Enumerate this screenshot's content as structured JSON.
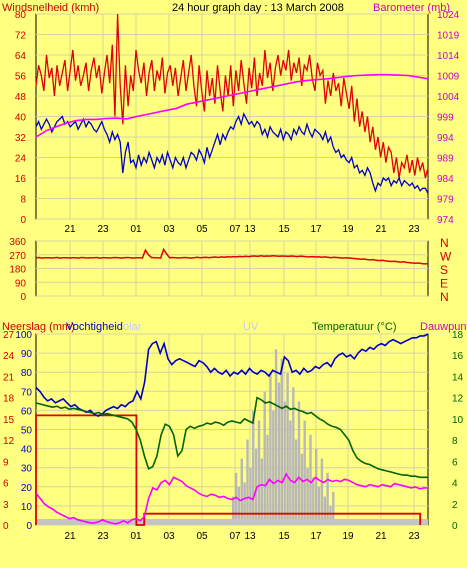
{
  "colors": {
    "background": "#ffff80",
    "plot_background": "#ffff80",
    "grid": "#d4d4a0",
    "frame": "#000000",
    "axis_text": "#000000",
    "title_red": "#d00000",
    "title_magenta": "#cc00cc",
    "blue_label": "#0000c8",
    "green_label": "#006400",
    "ghost_label": "#c8c8ff"
  },
  "header": {
    "left_label": "Windsnelheid (kmh)",
    "title": "24 hour graph day : 13 March 2008",
    "right_label": "Barometer (mb)"
  },
  "bottom_header": {
    "rain_label": "Neerslag (mm)",
    "humidity_label": "Vochtigheid",
    "solar_label": "olar",
    "uv_label": "UV",
    "temp_label": "Temperatuur (°C)",
    "dew_label": "Dauwpunt"
  },
  "chart_data": [
    {
      "type": "line",
      "id": "wind_pressure",
      "x_ticks": [
        "21",
        "23",
        "01",
        "03",
        "05",
        "07",
        "13",
        "15",
        "17",
        "19",
        "21",
        "23"
      ],
      "left_axis": {
        "ticks": [
          0,
          8,
          16,
          24,
          32,
          40,
          48,
          56,
          64,
          72,
          80
        ],
        "ylim": [
          0,
          80
        ]
      },
      "right_axis": {
        "ticks": [
          974,
          979,
          984,
          989,
          994,
          999,
          1004,
          1009,
          1014,
          1019,
          1024
        ],
        "ylim": [
          974,
          1024
        ]
      },
      "series": [
        {
          "name": "Windsnelheid (kmh)",
          "color": "#e00000",
          "axis": "left",
          "values": [
            52,
            60,
            56,
            50,
            64,
            55,
            59,
            48,
            60,
            52,
            57,
            62,
            50,
            58,
            66,
            54,
            60,
            52,
            56,
            61,
            50,
            58,
            63,
            55,
            60,
            49,
            57,
            64,
            53,
            68,
            40,
            80,
            52,
            37,
            60,
            44,
            56,
            50,
            66,
            58,
            53,
            61,
            48,
            57,
            62,
            50,
            58,
            54,
            63,
            49,
            57,
            60,
            52,
            59,
            48,
            55,
            62,
            50,
            57,
            64,
            52,
            44,
            60,
            50,
            42,
            58,
            48,
            55,
            45,
            60,
            50,
            42,
            56,
            48,
            60,
            44,
            58,
            50,
            62,
            53,
            45,
            59,
            51,
            63,
            48,
            57,
            52,
            66,
            55,
            61,
            50,
            59,
            64,
            56,
            62,
            58,
            66,
            54,
            61,
            57,
            63,
            52,
            60,
            58,
            64,
            55,
            50,
            61,
            56,
            58,
            45,
            54,
            48,
            57,
            50,
            53,
            44,
            55,
            49,
            43,
            52,
            38,
            47,
            36,
            42,
            34,
            40,
            30,
            36,
            27,
            32,
            24,
            30,
            22,
            28,
            26,
            18,
            24,
            16,
            22,
            20,
            25,
            18,
            23,
            17,
            24,
            19,
            22,
            16,
            20
          ]
        },
        {
          "name": "Windsnelheid gemiddelde",
          "color": "#0000c8",
          "axis": "left",
          "values": [
            36,
            38,
            35,
            37,
            39,
            37,
            34,
            36,
            38,
            39,
            40,
            37,
            38,
            36,
            37,
            38,
            35,
            37,
            39,
            36,
            38,
            37,
            35,
            34,
            36,
            38,
            35,
            33,
            30,
            34,
            31,
            33,
            30,
            18,
            26,
            30,
            22,
            23,
            20,
            25,
            21,
            24,
            22,
            26,
            23,
            20,
            24,
            22,
            25,
            21,
            26,
            23,
            20,
            24,
            22,
            21,
            24,
            20,
            23,
            26,
            25,
            23,
            27,
            25,
            22,
            28,
            24,
            27,
            30,
            33,
            29,
            33,
            31,
            34,
            36,
            35,
            38,
            40,
            37,
            41,
            39,
            37,
            38,
            36,
            38,
            37,
            33,
            35,
            32,
            36,
            34,
            33,
            32,
            35,
            31,
            34,
            33,
            31,
            35,
            33,
            36,
            34,
            33,
            37,
            34,
            32,
            35,
            34,
            33,
            31,
            34,
            30,
            32,
            28,
            26,
            27,
            24,
            25,
            23,
            22,
            24,
            20,
            21,
            18,
            19,
            17,
            20,
            18,
            14,
            11,
            14,
            13,
            16,
            15,
            16,
            13,
            15,
            14,
            16,
            13,
            15,
            14,
            13,
            14,
            12,
            13,
            11,
            12,
            12,
            10
          ]
        },
        {
          "name": "Barometer (mb)",
          "color": "#ff00ff",
          "axis": "right",
          "values": [
            994,
            995.5,
            996.5,
            997.4,
            998,
            998.3,
            998.3,
            998.5,
            998.6,
            998.4,
            999,
            999.5,
            1000,
            1000.5,
            1001,
            1002,
            1002.5,
            1003,
            1003.5,
            1004,
            1004.5,
            1005,
            1005.5,
            1006,
            1006.5,
            1007,
            1007.5,
            1007.8,
            1008,
            1008.2,
            1008.5,
            1008.8,
            1009,
            1009.1,
            1009.2,
            1009.2,
            1009.1,
            1009,
            1008.6,
            1008.2
          ]
        }
      ]
    },
    {
      "type": "line",
      "id": "wind_direction",
      "x_ticks": [],
      "left_axis": {
        "ticks": [
          0,
          90,
          180,
          270,
          360
        ],
        "ylim": [
          0,
          360
        ]
      },
      "right_axis": {
        "ticks": [
          "N",
          "W",
          "S",
          "E",
          "N"
        ]
      },
      "series": [
        {
          "name": "Windrichting",
          "color": "#e00000",
          "axis": "left",
          "values": [
            250,
            252,
            248,
            250,
            251,
            249,
            250,
            252,
            248,
            251,
            250,
            249,
            251,
            250,
            248,
            252,
            250,
            249,
            251,
            250,
            252,
            248,
            250,
            251,
            249,
            250,
            252,
            250,
            249,
            251,
            252,
            250,
            248,
            251,
            250,
            249,
            300,
            270,
            252,
            251,
            250,
            248,
            305,
            275,
            250,
            252,
            251,
            249,
            250,
            252,
            250,
            248,
            251,
            253,
            250,
            252,
            254,
            251,
            253,
            255,
            252,
            256,
            254,
            257,
            255,
            258,
            256,
            259,
            257,
            260,
            258,
            261,
            262,
            259,
            263,
            260,
            262,
            261,
            263,
            262,
            260,
            262,
            261,
            259,
            262,
            260,
            258,
            261,
            259,
            257,
            256,
            258,
            255,
            257,
            254,
            256,
            253,
            251,
            254,
            252,
            250,
            248,
            251,
            249,
            247,
            245,
            243,
            240,
            242,
            238,
            236,
            238,
            234,
            232,
            234,
            230,
            228,
            226,
            227,
            224,
            222,
            224,
            220,
            218,
            216,
            214,
            216,
            212,
            210,
            212
          ]
        }
      ]
    },
    {
      "type": "line",
      "id": "rain_humidity_temp",
      "x_ticks": [
        "21",
        "23",
        "01",
        "03",
        "05",
        "07",
        "13",
        "15",
        "17",
        "19",
        "21",
        "23"
      ],
      "left_axis_rain": {
        "ticks": [
          0,
          3,
          6,
          9,
          12,
          15,
          18,
          21,
          24,
          27
        ],
        "ylim": [
          0,
          27
        ]
      },
      "left_axis_humidity": {
        "ticks": [
          0,
          10,
          20,
          30,
          40,
          50,
          60,
          70,
          80,
          90,
          100
        ],
        "ylim": [
          0,
          100
        ]
      },
      "right_axis_temp": {
        "ticks": [
          0,
          2,
          4,
          6,
          8,
          10,
          12,
          14,
          16,
          18
        ],
        "ylim": [
          0,
          18
        ]
      },
      "series": [
        {
          "name": "Neerslag (mm)",
          "color": "#e00000",
          "axis": "left_rain",
          "x": [
            0,
            0,
            0.256,
            0.256,
            0.276,
            0.276,
            0.98,
            0.98
          ],
          "values": [
            0,
            15.5,
            15.5,
            0,
            0,
            1.6,
            1.6,
            0
          ]
        },
        {
          "name": "Vochtigheid",
          "color": "#0000c8",
          "axis": "left_humidity",
          "values": [
            72,
            70,
            67,
            65,
            66,
            64,
            65,
            66,
            64,
            62,
            63,
            61,
            60,
            59,
            60,
            58,
            57,
            58,
            60,
            61,
            62,
            61,
            63,
            62,
            64,
            65,
            70,
            66,
            75,
            92,
            95,
            96,
            90,
            95,
            87,
            84,
            86,
            87,
            86,
            85,
            84,
            83,
            86,
            85,
            83,
            80,
            82,
            80,
            79,
            81,
            78,
            80,
            79,
            81,
            79,
            82,
            80,
            79,
            81,
            80,
            78,
            81,
            80,
            79,
            88,
            86,
            80,
            81,
            79,
            82,
            80,
            81,
            83,
            82,
            84,
            85,
            83,
            87,
            89,
            90,
            88,
            89,
            87,
            90,
            92,
            91,
            93,
            92,
            94,
            95,
            94,
            96,
            97,
            96,
            95,
            96,
            97,
            98,
            98,
            99,
            99,
            100
          ]
        },
        {
          "name": "Temperatuur (°C)",
          "color": "#006400",
          "axis": "right_temp",
          "values": [
            11.5,
            11.4,
            11.3,
            11.2,
            11.1,
            11.2,
            11.0,
            11.1,
            10.9,
            11.0,
            10.9,
            10.8,
            10.7,
            10.6,
            10.5,
            10.6,
            10.4,
            10.5,
            10.4,
            10.3,
            10.2,
            10.1,
            10.0,
            9.7,
            9.0,
            8.0,
            6.5,
            5.3,
            5.5,
            6.5,
            8.5,
            9.5,
            9.3,
            8.5,
            6.5,
            7.0,
            9.0,
            9.3,
            9.1,
            9.3,
            9.4,
            9.6,
            9.5,
            9.7,
            9.6,
            9.4,
            9.7,
            9.8,
            9.7,
            9.6,
            10.0,
            9.8,
            9.6,
            12.0,
            11.8,
            11.5,
            11.6,
            11.4,
            11.2,
            11.0,
            11.2,
            10.9,
            11.0,
            10.8,
            10.7,
            10.5,
            10.6,
            10.3,
            10.0,
            9.8,
            9.5,
            9.3,
            9.2,
            9.0,
            8.5,
            8.0,
            7.0,
            6.3,
            6.0,
            5.8,
            5.7,
            5.5,
            5.3,
            5.2,
            5.1,
            5.0,
            4.9,
            4.8,
            4.7,
            4.7,
            4.6,
            4.6,
            4.5,
            4.5,
            4.5
          ]
        },
        {
          "name": "Dauwpunt",
          "color": "#ff00ff",
          "axis": "right_temp",
          "values": [
            3.0,
            2.5,
            2.0,
            1.7,
            1.5,
            1.2,
            1.0,
            0.8,
            0.6,
            0.7,
            0.5,
            0.4,
            0.3,
            0.2,
            0.2,
            0.3,
            0.5,
            0.3,
            0.2,
            0.1,
            0.2,
            0.4,
            0.2,
            0.5,
            0.6,
            0.4,
            0.8,
            2.5,
            3.5,
            3.3,
            4.0,
            4.2,
            3.8,
            4.5,
            4.3,
            4.1,
            3.7,
            3.5,
            3.3,
            3.0,
            2.8,
            2.7,
            2.9,
            2.8,
            2.6,
            2.7,
            2.5,
            2.4,
            2.6,
            2.3,
            2.5,
            2.6,
            2.4,
            3.6,
            3.8,
            3.7,
            4.3,
            3.9,
            4.2,
            4.0,
            4.8,
            4.2,
            4.0,
            4.5,
            4.1,
            4.3,
            4.0,
            4.5,
            4.2,
            4.0,
            4.3,
            4.1,
            4.2,
            4.1,
            4.3,
            4.2,
            4.0,
            3.8,
            3.7,
            3.6,
            3.8,
            3.7,
            3.6,
            3.8,
            3.7,
            3.6,
            3.9,
            3.8,
            3.7,
            3.6,
            3.5,
            3.6,
            3.4,
            3.5,
            3.5
          ]
        }
      ]
    }
  ]
}
